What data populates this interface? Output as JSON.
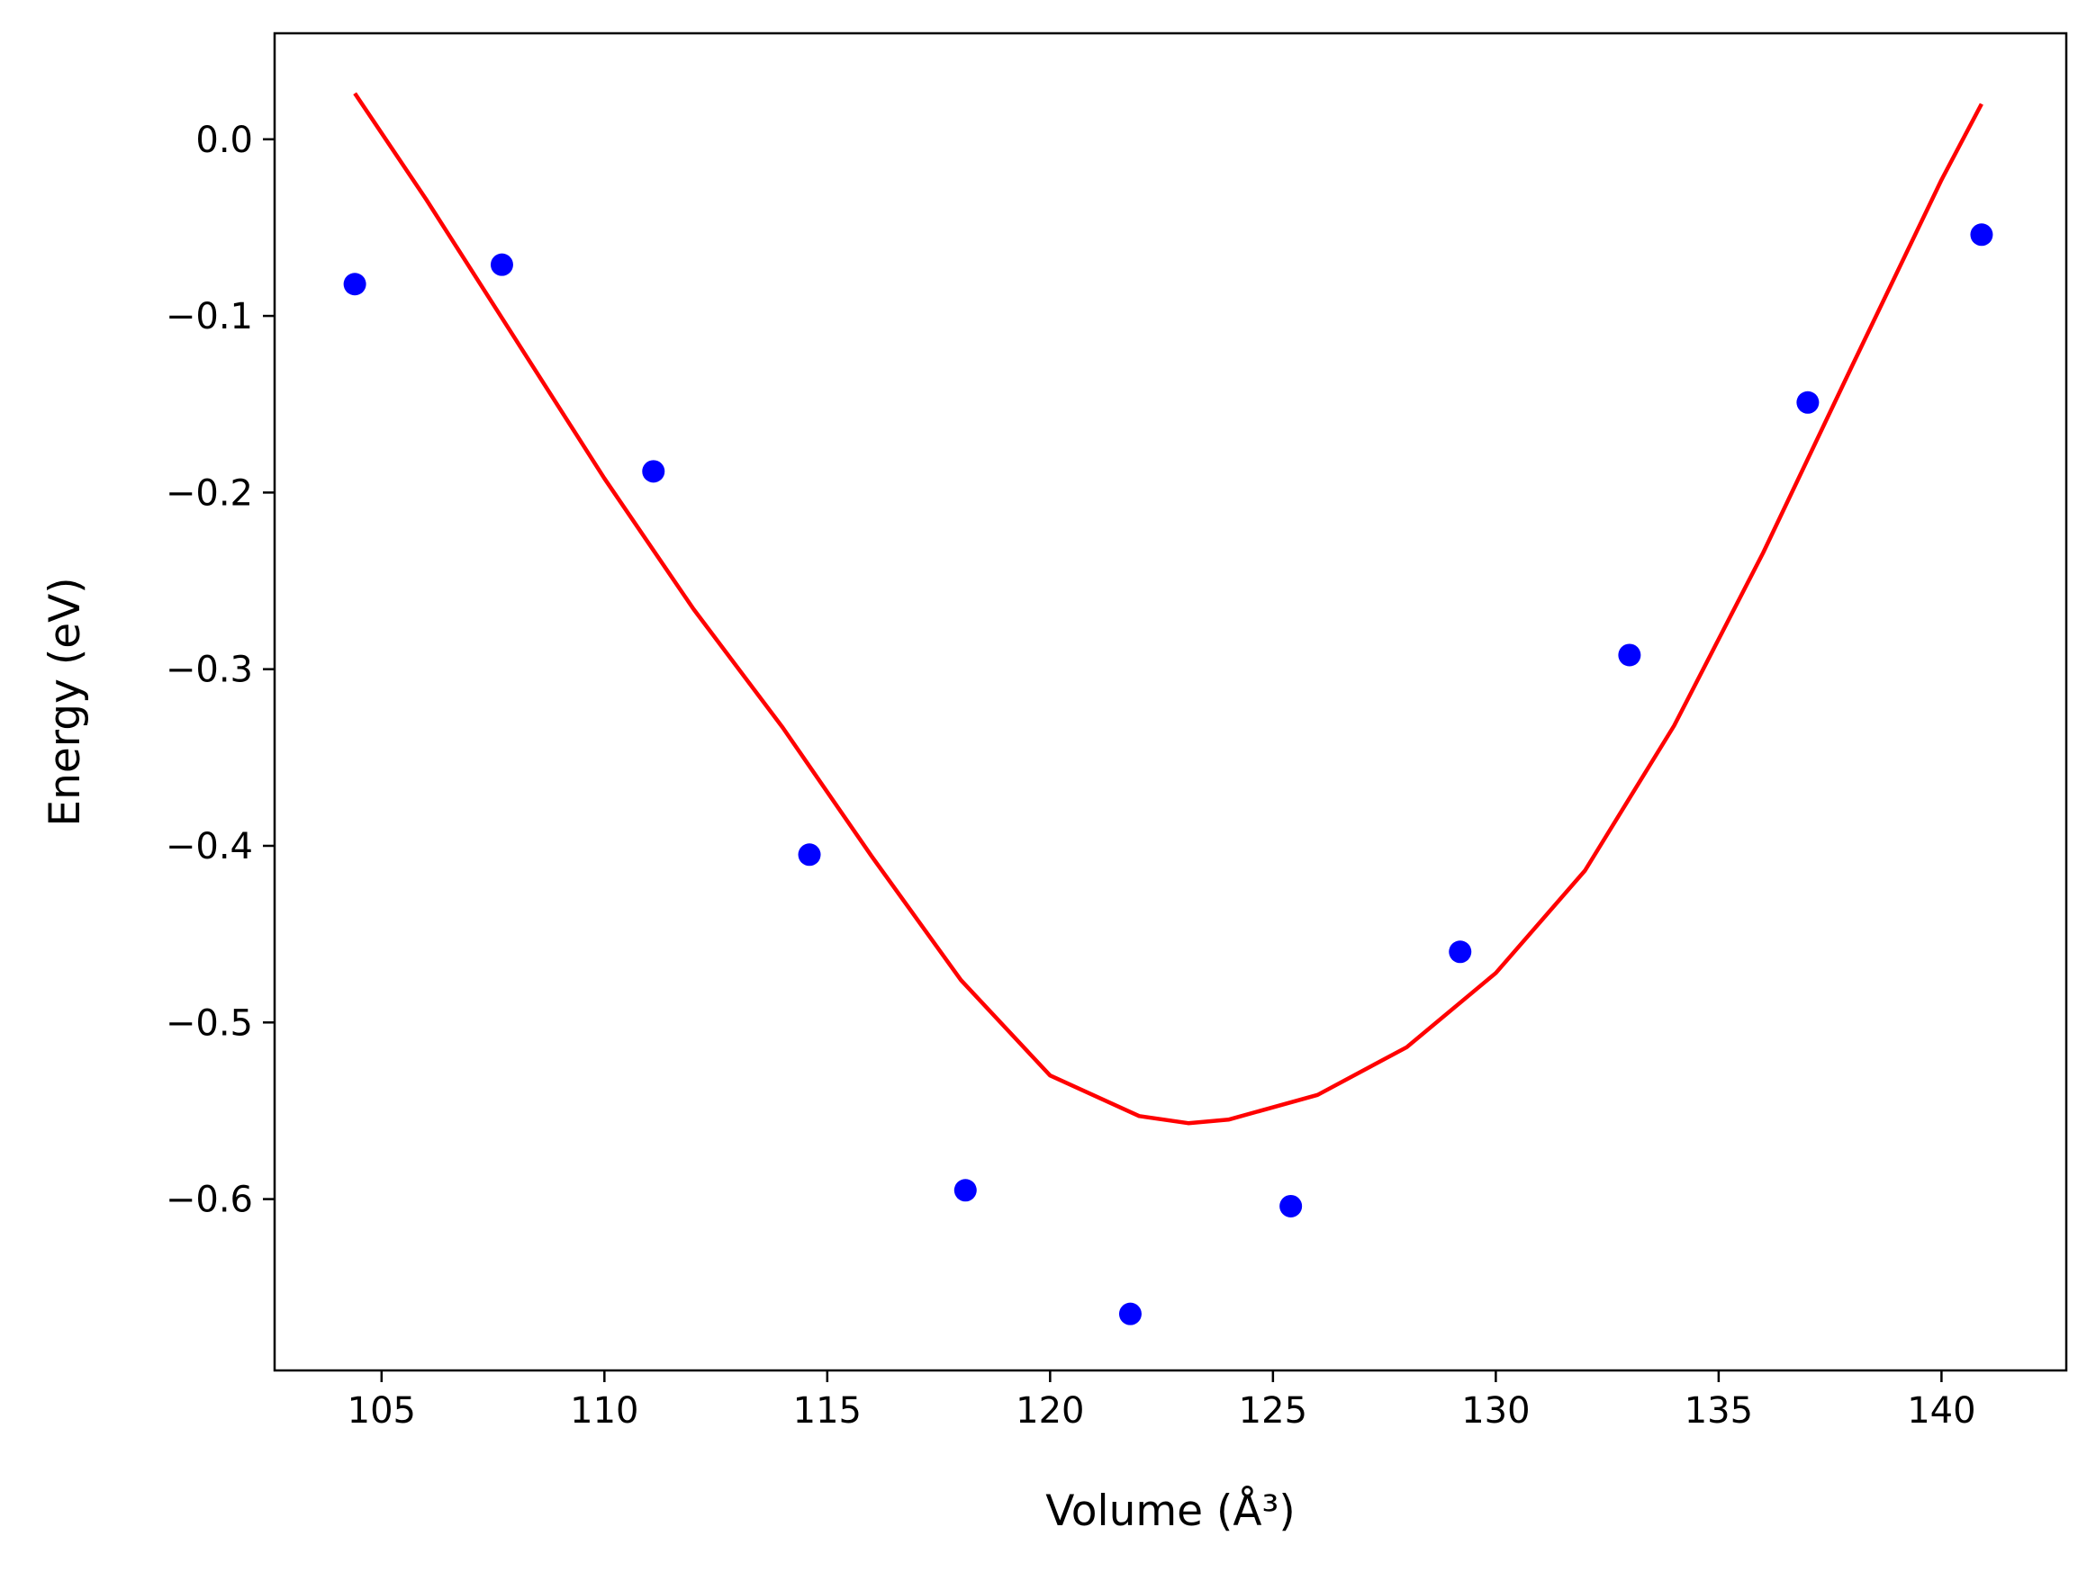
{
  "chart_data": {
    "type": "scatter",
    "xlabel": "Volume (Å³)",
    "ylabel": "Energy (eV)",
    "xlim": [
      102.6,
      142.8
    ],
    "ylim": [
      -0.697,
      0.06
    ],
    "grid": false,
    "xticks": [
      105,
      110,
      115,
      120,
      125,
      130,
      135,
      140
    ],
    "xtick_labels": [
      "105",
      "110",
      "115",
      "120",
      "125",
      "130",
      "135",
      "140"
    ],
    "yticks": [
      0.0,
      -0.1,
      -0.2,
      -0.3,
      -0.4,
      -0.5,
      -0.6
    ],
    "ytick_labels": [
      "0.0",
      "−0.1",
      "−0.2",
      "−0.3",
      "−0.4",
      "−0.5",
      "−0.6"
    ],
    "series": [
      {
        "kind": "points",
        "color": "#0000ff",
        "x": [
          104.4,
          107.7,
          111.1,
          114.6,
          118.1,
          121.8,
          125.4,
          129.2,
          133.0,
          137.0,
          140.9
        ],
        "y": [
          -0.082,
          -0.071,
          -0.188,
          -0.405,
          -0.595,
          -0.665,
          -0.604,
          -0.46,
          -0.292,
          -0.149,
          -0.054
        ]
      },
      {
        "kind": "fit-curve",
        "color": "#ff0000",
        "x": [
          104.4,
          106.0,
          108.0,
          110.0,
          112.0,
          114.0,
          116.0,
          118.0,
          120.0,
          122.0,
          123.1,
          124.0,
          126.0,
          128.0,
          130.0,
          132.0,
          134.0,
          136.0,
          138.0,
          140.0,
          140.9
        ],
        "y": [
          0.026,
          -0.034,
          -0.113,
          -0.192,
          -0.266,
          -0.333,
          -0.406,
          -0.476,
          -0.53,
          -0.553,
          -0.557,
          -0.555,
          -0.541,
          -0.514,
          -0.472,
          -0.414,
          -0.332,
          -0.234,
          -0.128,
          -0.023,
          0.02
        ]
      }
    ]
  }
}
